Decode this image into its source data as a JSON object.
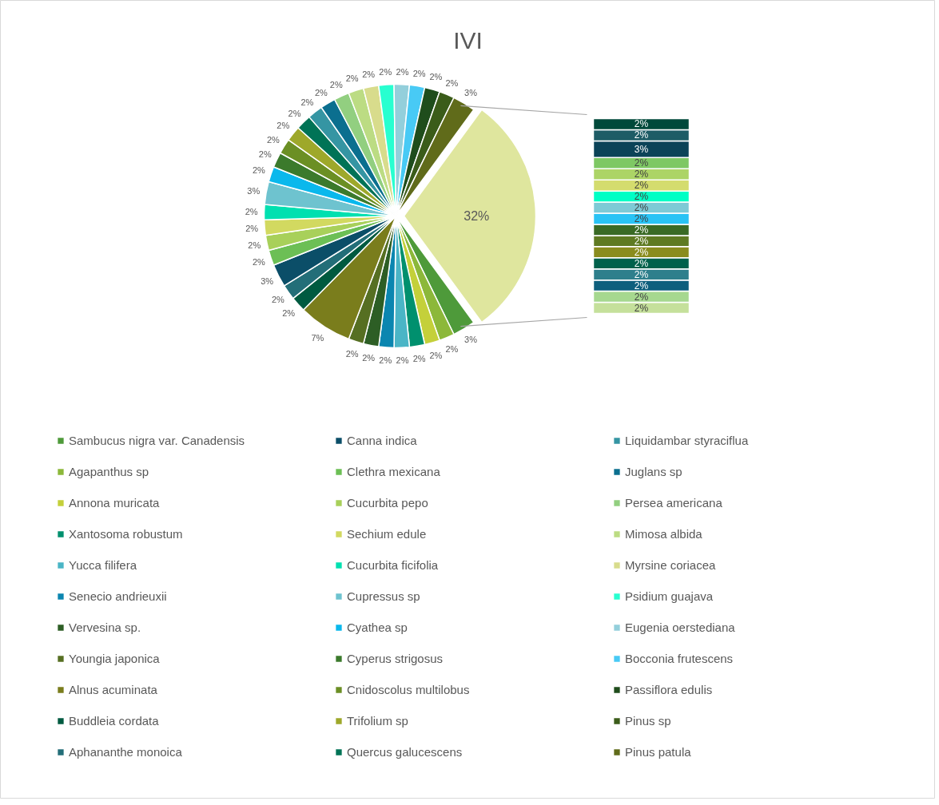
{
  "chart_data": [
    {
      "type": "pie",
      "title": "IVI",
      "legend": "bottom",
      "value_labels": [
        "32%",
        "3%",
        "2%",
        "2%",
        "2%",
        "2%",
        "2%",
        "2%",
        "2%",
        "7%",
        "2%",
        "2%",
        "3%",
        "2%",
        "2%",
        "2%",
        "2%",
        "3%",
        "2%",
        "2%",
        "2%",
        "2%",
        "2%",
        "2%",
        "2%",
        "2%",
        "2%",
        "2%",
        "2%",
        "2%",
        "2%",
        "2%",
        "2%",
        "3%"
      ],
      "categories": [
        null,
        "Sambucus nigra var. Canadensis",
        "Agapanthus sp",
        "Annona muricata",
        "Xantosoma robustum",
        "Yucca filifera",
        "Senecio andrieuxii",
        "Vervesina sp.",
        "Youngia japonica",
        "Alnus acuminata",
        "Buddleia cordata",
        "Aphananthe monoica",
        "Canna indica",
        "Clethra mexicana",
        "Cucurbita pepo",
        "Sechium edule",
        "Cucurbita ficifolia",
        "Cupressus sp",
        "Cyathea sp",
        "Cyperus strigosus",
        "Cnidoscolus multilobus",
        "Trifolium sp",
        "Quercus galucescens",
        "Liquidambar styraciflua",
        "Juglans sp",
        "Persea americana",
        "Mimosa albida",
        "Myrsine coriacea",
        "Psidium guajava",
        "Eugenia oerstediana",
        "Bocconia frutescens",
        "Passiflora edulis",
        "Pinus sp",
        "Pinus patula"
      ],
      "values": [
        32,
        3,
        2,
        2,
        2,
        2,
        2,
        2,
        2,
        7,
        2,
        2,
        3,
        2,
        2,
        2,
        2,
        3,
        2,
        2,
        2,
        2,
        2,
        2,
        2,
        2,
        2,
        2,
        2,
        2,
        2,
        2,
        2,
        3
      ],
      "colors": [
        "#dfe69e",
        "#4e9a3a",
        "#8cb83a",
        "#c4d03a",
        "#00906e",
        "#4ab5c6",
        "#0b86b0",
        "#2d5e25",
        "#566f22",
        "#7a7d1c",
        "#005a40",
        "#236e78",
        "#0b4e68",
        "#6cbf55",
        "#a8d05a",
        "#d2d960",
        "#00e0b0",
        "#6ec3cf",
        "#0ab8ec",
        "#3b7a2c",
        "#6b8f24",
        "#9ea82a",
        "#007356",
        "#3595a3",
        "#0b6f8f",
        "#92cf80",
        "#bcdc83",
        "#d8dc8c",
        "#28ffd0",
        "#93cfdb",
        "#48caf5",
        "#1f4d1c",
        "#3b5c1a",
        "#606b1a"
      ]
    },
    {
      "type": "bar",
      "stacked": true,
      "categories": [
        null
      ],
      "series": [
        {
          "color": "#c5e09b",
          "values": [
            2
          ],
          "value_labels": [
            "2%"
          ]
        },
        {
          "color": "#a6d88f",
          "values": [
            2
          ],
          "value_labels": [
            "2%"
          ]
        },
        {
          "color": "#0e5f7d",
          "values": [
            2
          ],
          "value_labels": [
            "2%"
          ]
        },
        {
          "color": "#2e7f8c",
          "values": [
            2
          ],
          "value_labels": [
            "2%"
          ]
        },
        {
          "color": "#00614c",
          "values": [
            2
          ],
          "value_labels": [
            "2%"
          ]
        },
        {
          "color": "#8a8c1e",
          "values": [
            2
          ],
          "value_labels": [
            "2%"
          ]
        },
        {
          "color": "#5f7a22",
          "values": [
            2
          ],
          "value_labels": [
            "2%"
          ]
        },
        {
          "color": "#3a6a25",
          "values": [
            2
          ],
          "value_labels": [
            "2%"
          ]
        },
        {
          "color": "#29c3f5",
          "values": [
            2
          ],
          "value_labels": [
            "2%"
          ]
        },
        {
          "color": "#7ecad6",
          "values": [
            2
          ],
          "value_labels": [
            "2%"
          ]
        },
        {
          "color": "#00ffc5",
          "values": [
            2
          ],
          "value_labels": [
            "2%"
          ]
        },
        {
          "color": "#d4dc6e",
          "values": [
            2
          ],
          "value_labels": [
            "2%"
          ]
        },
        {
          "color": "#acd466",
          "values": [
            2
          ],
          "value_labels": [
            "2%"
          ]
        },
        {
          "color": "#7ec864",
          "values": [
            2
          ],
          "value_labels": [
            "2%"
          ]
        },
        {
          "color": "#0b4358",
          "values": [
            3
          ],
          "value_labels": [
            "3%"
          ]
        },
        {
          "color": "#1e5c66",
          "values": [
            2
          ],
          "value_labels": [
            "2%"
          ]
        },
        {
          "color": "#00493a",
          "values": [
            2
          ],
          "value_labels": [
            "2%"
          ]
        }
      ]
    }
  ]
}
